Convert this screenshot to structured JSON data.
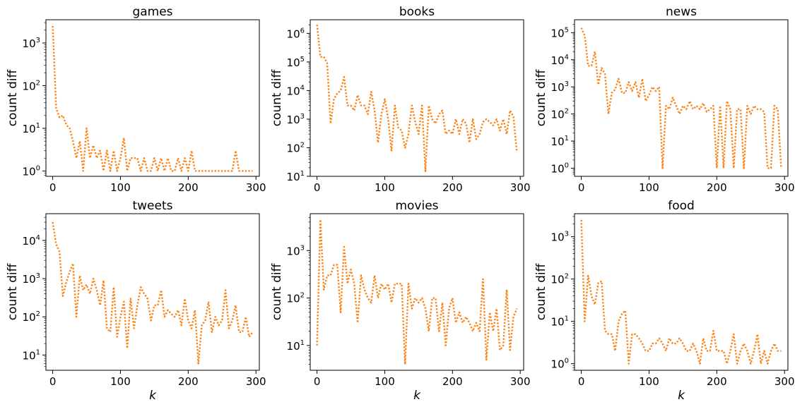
{
  "figure": {
    "line_color": "#ff7f0e",
    "line_style": "dotted",
    "xlabel_text": "k"
  },
  "chart_data": [
    {
      "type": "line",
      "title": "games",
      "xlabel": "",
      "ylabel": "count diff",
      "yscale": "log",
      "xlim": [
        -10,
        305
      ],
      "ylim": [
        0.75,
        3500
      ],
      "xticks": [
        0,
        100,
        200,
        300
      ],
      "yticks": [
        {
          "value": 1,
          "exp": "0"
        },
        {
          "value": 10,
          "exp": "1"
        },
        {
          "value": 100,
          "exp": "2"
        },
        {
          "value": 1000,
          "exp": "3"
        }
      ],
      "series": [
        {
          "x": [
            0,
            5,
            10,
            15,
            20,
            25,
            30,
            35,
            40,
            45,
            50,
            55,
            60,
            65,
            70,
            75,
            80,
            85,
            90,
            95,
            100,
            105,
            110,
            115,
            120,
            125,
            130,
            135,
            140,
            145,
            150,
            155,
            160,
            165,
            170,
            175,
            180,
            185,
            190,
            195,
            200,
            205,
            210,
            215,
            220,
            225,
            230,
            235,
            240,
            245,
            250,
            255,
            260,
            265,
            270,
            275,
            280,
            285,
            290,
            295
          ],
          "y": [
            2500,
            30,
            18,
            20,
            12,
            10,
            5,
            2,
            5,
            1,
            10,
            2,
            4,
            2,
            3,
            1,
            3,
            1,
            3,
            1,
            2,
            6,
            1,
            2,
            2,
            2,
            1,
            2,
            1,
            1,
            2,
            1,
            2,
            1,
            2,
            1,
            1,
            2,
            1,
            2,
            1,
            3,
            1,
            1,
            1,
            1,
            1,
            1,
            1,
            1,
            1,
            1,
            1,
            1,
            3,
            1,
            1,
            1,
            1,
            1
          ]
        }
      ]
    },
    {
      "type": "line",
      "title": "books",
      "xlabel": "",
      "ylabel": "count diff",
      "yscale": "log",
      "xlim": [
        -10,
        305
      ],
      "ylim": [
        10,
        3000000
      ],
      "xticks": [
        0,
        100,
        200,
        300
      ],
      "yticks": [
        {
          "value": 10,
          "exp": "1"
        },
        {
          "value": 100,
          "exp": "2"
        },
        {
          "value": 1000,
          "exp": "3"
        },
        {
          "value": 10000,
          "exp": "4"
        },
        {
          "value": 100000,
          "exp": "5"
        },
        {
          "value": 1000000,
          "exp": "6"
        }
      ],
      "series": [
        {
          "x": [
            0,
            5,
            10,
            15,
            20,
            25,
            30,
            35,
            40,
            45,
            50,
            55,
            60,
            65,
            70,
            75,
            80,
            85,
            90,
            95,
            100,
            105,
            110,
            115,
            120,
            125,
            130,
            135,
            140,
            145,
            150,
            155,
            160,
            165,
            170,
            175,
            180,
            185,
            190,
            195,
            200,
            205,
            210,
            215,
            220,
            225,
            230,
            235,
            240,
            245,
            250,
            255,
            260,
            265,
            270,
            275,
            280,
            285,
            290,
            295
          ],
          "y": [
            2000000,
            150000,
            150000,
            90000,
            700,
            5000,
            8000,
            10000,
            30000,
            3000,
            3000,
            2000,
            7000,
            3000,
            3000,
            1500,
            9000,
            2000,
            150,
            1500,
            5000,
            1000,
            80,
            3000,
            500,
            400,
            100,
            300,
            3000,
            800,
            300,
            3000,
            15,
            3000,
            1000,
            700,
            1500,
            2000,
            300,
            400,
            300,
            1000,
            300,
            1000,
            700,
            150,
            1000,
            200,
            300,
            800,
            1000,
            800,
            600,
            1000,
            400,
            1000,
            300,
            2000,
            1200,
            70
          ]
        }
      ]
    },
    {
      "type": "line",
      "title": "news",
      "xlabel": "",
      "ylabel": "count diff",
      "yscale": "log",
      "xlim": [
        -10,
        305
      ],
      "ylim": [
        0.5,
        300000
      ],
      "xticks": [
        0,
        100,
        200,
        300
      ],
      "yticks": [
        {
          "value": 1,
          "exp": "0"
        },
        {
          "value": 10,
          "exp": "1"
        },
        {
          "value": 100,
          "exp": "2"
        },
        {
          "value": 1000,
          "exp": "3"
        },
        {
          "value": 10000,
          "exp": "4"
        },
        {
          "value": 100000,
          "exp": "5"
        }
      ],
      "series": [
        {
          "x": [
            0,
            5,
            10,
            15,
            20,
            25,
            30,
            35,
            40,
            45,
            50,
            55,
            60,
            65,
            70,
            75,
            80,
            85,
            90,
            95,
            100,
            105,
            110,
            115,
            120,
            125,
            130,
            135,
            140,
            145,
            150,
            155,
            160,
            165,
            170,
            175,
            180,
            185,
            190,
            195,
            200,
            205,
            210,
            215,
            220,
            225,
            230,
            235,
            240,
            245,
            250,
            255,
            260,
            265,
            270,
            275,
            280,
            285,
            290,
            295
          ],
          "y": [
            150000,
            80000,
            6000,
            6000,
            20000,
            1200,
            5000,
            3000,
            100,
            600,
            800,
            2000,
            600,
            600,
            1500,
            700,
            1500,
            400,
            2000,
            300,
            500,
            1000,
            700,
            1000,
            1,
            200,
            150,
            400,
            200,
            100,
            200,
            150,
            300,
            150,
            200,
            150,
            250,
            120,
            150,
            200,
            1,
            200,
            1,
            300,
            150,
            1,
            150,
            150,
            1,
            200,
            100,
            200,
            150,
            150,
            120,
            1,
            1,
            200,
            150,
            1
          ]
        }
      ]
    },
    {
      "type": "line",
      "title": "tweets",
      "xlabel": "k",
      "ylabel": "count diff",
      "yscale": "log",
      "xlim": [
        -10,
        305
      ],
      "ylim": [
        4,
        50000
      ],
      "xticks": [
        0,
        100,
        200,
        300
      ],
      "yticks": [
        {
          "value": 10,
          "exp": "1"
        },
        {
          "value": 100,
          "exp": "2"
        },
        {
          "value": 1000,
          "exp": "3"
        },
        {
          "value": 10000,
          "exp": "4"
        }
      ],
      "series": [
        {
          "x": [
            0,
            5,
            10,
            15,
            20,
            25,
            30,
            35,
            40,
            45,
            50,
            55,
            60,
            65,
            70,
            75,
            80,
            85,
            90,
            95,
            100,
            105,
            110,
            115,
            120,
            125,
            130,
            135,
            140,
            145,
            150,
            155,
            160,
            165,
            170,
            175,
            180,
            185,
            190,
            195,
            200,
            205,
            210,
            215,
            220,
            225,
            230,
            235,
            240,
            245,
            250,
            255,
            260,
            265,
            270,
            275,
            280,
            285,
            290,
            295
          ],
          "y": [
            30000,
            8000,
            5000,
            350,
            800,
            1500,
            2500,
            100,
            1200,
            500,
            700,
            400,
            1000,
            500,
            200,
            900,
            50,
            40,
            600,
            30,
            100,
            250,
            15,
            300,
            50,
            200,
            600,
            400,
            300,
            80,
            200,
            200,
            500,
            100,
            150,
            120,
            100,
            150,
            60,
            300,
            80,
            50,
            150,
            6,
            60,
            80,
            250,
            40,
            100,
            60,
            80,
            500,
            50,
            80,
            200,
            40,
            40,
            100,
            30,
            40
          ]
        }
      ]
    },
    {
      "type": "line",
      "title": "movies",
      "xlabel": "k",
      "ylabel": "count diff",
      "yscale": "log",
      "xlim": [
        -10,
        305
      ],
      "ylim": [
        3,
        6000
      ],
      "xticks": [
        0,
        100,
        200,
        300
      ],
      "yticks": [
        {
          "value": 10,
          "exp": "1"
        },
        {
          "value": 100,
          "exp": "2"
        },
        {
          "value": 1000,
          "exp": "3"
        }
      ],
      "series": [
        {
          "x": [
            0,
            5,
            10,
            15,
            20,
            25,
            30,
            35,
            40,
            45,
            50,
            55,
            60,
            65,
            70,
            75,
            80,
            85,
            90,
            95,
            100,
            105,
            110,
            115,
            120,
            125,
            130,
            135,
            140,
            145,
            150,
            155,
            160,
            165,
            170,
            175,
            180,
            185,
            190,
            195,
            200,
            205,
            210,
            215,
            220,
            225,
            230,
            235,
            240,
            245,
            250,
            255,
            260,
            265,
            270,
            275,
            280,
            285,
            290,
            295
          ],
          "y": [
            10,
            4500,
            150,
            300,
            300,
            500,
            500,
            50,
            1200,
            200,
            400,
            200,
            30,
            300,
            150,
            100,
            80,
            300,
            100,
            200,
            150,
            200,
            80,
            200,
            200,
            200,
            4,
            200,
            60,
            100,
            80,
            100,
            60,
            20,
            100,
            100,
            20,
            80,
            10,
            60,
            100,
            30,
            50,
            30,
            40,
            30,
            20,
            30,
            20,
            250,
            5,
            50,
            20,
            60,
            8,
            10,
            150,
            8,
            40,
            60
          ]
        }
      ]
    },
    {
      "type": "line",
      "title": "food",
      "xlabel": "k",
      "ylabel": "count diff",
      "yscale": "log",
      "xlim": [
        -10,
        305
      ],
      "ylim": [
        0.7,
        3500
      ],
      "xticks": [
        0,
        100,
        200,
        300
      ],
      "yticks": [
        {
          "value": 1,
          "exp": "0"
        },
        {
          "value": 10,
          "exp": "1"
        },
        {
          "value": 100,
          "exp": "2"
        },
        {
          "value": 1000,
          "exp": "3"
        }
      ],
      "series": [
        {
          "x": [
            0,
            5,
            10,
            15,
            20,
            25,
            30,
            35,
            40,
            45,
            50,
            55,
            60,
            65,
            70,
            75,
            80,
            85,
            90,
            95,
            100,
            105,
            110,
            115,
            120,
            125,
            130,
            135,
            140,
            145,
            150,
            155,
            160,
            165,
            170,
            175,
            180,
            185,
            190,
            195,
            200,
            205,
            210,
            215,
            220,
            225,
            230,
            235,
            240,
            245,
            250,
            255,
            260,
            265,
            270,
            275,
            280,
            285,
            290,
            295
          ],
          "y": [
            2500,
            10,
            120,
            40,
            25,
            80,
            90,
            6,
            5,
            5,
            2,
            10,
            15,
            18,
            1,
            5,
            5,
            4,
            3,
            2,
            2,
            3,
            3,
            4,
            3,
            2,
            4,
            3,
            3,
            4,
            3,
            2,
            2,
            3,
            2,
            1,
            4,
            2,
            2,
            6,
            2,
            2,
            2,
            1,
            2,
            5,
            1,
            2,
            3,
            2,
            1,
            2,
            5,
            1,
            2,
            1,
            2,
            3,
            2,
            2
          ]
        }
      ]
    }
  ]
}
